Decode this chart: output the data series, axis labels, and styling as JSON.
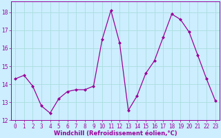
{
  "x": [
    0,
    1,
    2,
    3,
    4,
    5,
    6,
    7,
    8,
    9,
    10,
    11,
    12,
    13,
    14,
    15,
    16,
    17,
    18,
    19,
    20,
    21,
    22,
    23
  ],
  "y": [
    14.3,
    14.5,
    13.9,
    12.8,
    12.4,
    13.2,
    13.6,
    13.7,
    13.7,
    13.9,
    16.5,
    18.1,
    16.3,
    12.55,
    13.35,
    14.6,
    15.3,
    16.6,
    17.9,
    17.6,
    16.9,
    15.6,
    14.3,
    13.1
  ],
  "line_color": "#990099",
  "marker": "D",
  "marker_size": 2,
  "bg_color": "#cceeff",
  "grid_color": "#aadddd",
  "xlim": [
    -0.5,
    23.5
  ],
  "ylim": [
    12,
    18.6
  ],
  "yticks": [
    12,
    13,
    14,
    15,
    16,
    17,
    18
  ],
  "xticks": [
    0,
    1,
    2,
    3,
    4,
    5,
    6,
    7,
    8,
    9,
    10,
    11,
    12,
    13,
    14,
    15,
    16,
    17,
    18,
    19,
    20,
    21,
    22,
    23
  ],
  "xlabel": "Windchill (Refroidissement éolien,°C)",
  "xlabel_color": "#990099",
  "xlabel_fontsize": 6.0,
  "tick_fontsize": 5.5,
  "tick_color": "#990099",
  "spine_color": "#990099",
  "linewidth": 0.9
}
